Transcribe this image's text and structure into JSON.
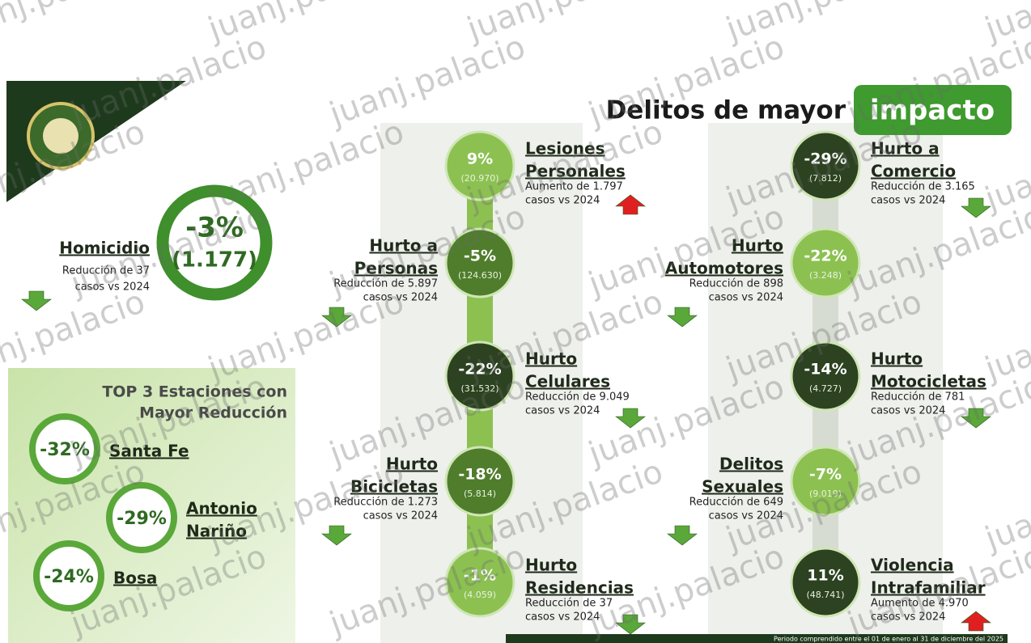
{
  "title": "Delitos de mayor",
  "title_highlight": "impacto",
  "watermark": "juanj.palacio",
  "homicidio": {
    "name": "Homicidio",
    "pct": "-3%",
    "count": "(1.177)",
    "desc": [
      "Reducción de 37",
      "casos vs 2024"
    ],
    "trend": "down"
  },
  "top3": {
    "title": [
      "TOP 3 Estaciones con",
      "Mayor Reducción"
    ],
    "items": [
      {
        "pct": "-32%",
        "name": [
          "Santa Fe"
        ]
      },
      {
        "pct": "-29%",
        "name": [
          "Antonio",
          "Nariño"
        ]
      },
      {
        "pct": "-24%",
        "name": [
          "Bosa"
        ]
      }
    ]
  },
  "columns": [
    [
      {
        "name": [
          "Lesiones",
          "Personales"
        ],
        "pct": "9%",
        "count": "(20.970)",
        "desc": [
          "Aumento de 1.797",
          "casos vs 2024"
        ],
        "trend": "up",
        "color": "#8cc152"
      },
      {
        "name": [
          "Hurto a",
          "Personas"
        ],
        "pct": "-5%",
        "count": "(124.630)",
        "desc": [
          "Reducción de 5.897",
          "casos vs 2024"
        ],
        "trend": "down",
        "color": "#4f7d2c"
      },
      {
        "name": [
          "Hurto",
          "Celulares"
        ],
        "pct": "-22%",
        "count": "(31.532)",
        "desc": [
          "Reducción de 9.049",
          "casos vs 2024"
        ],
        "trend": "down",
        "color": "#2c4220"
      },
      {
        "name": [
          "Hurto",
          "Bicicletas"
        ],
        "pct": "-18%",
        "count": "(5.814)",
        "desc": [
          "Reducción de 1.273",
          "casos vs 2024"
        ],
        "trend": "down",
        "color": "#4f7d2c"
      },
      {
        "name": [
          "Hurto",
          "Residencias"
        ],
        "pct": "-1%",
        "count": "(4.059)",
        "desc": [
          "Reducción de 37",
          "casos vs 2024"
        ],
        "trend": "down",
        "color": "#8cc152"
      }
    ],
    [
      {
        "name": [
          "Hurto a",
          "Comercio"
        ],
        "pct": "-29%",
        "count": "(7.812)",
        "desc": [
          "Reducción de 3.165",
          "casos vs 2024"
        ],
        "trend": "down",
        "color": "#2c4220"
      },
      {
        "name": [
          "Hurto",
          "Automotores"
        ],
        "pct": "-22%",
        "count": "(3.248)",
        "desc": [
          "Reducción de 898",
          "casos vs 2024"
        ],
        "trend": "down",
        "color": "#8cc152"
      },
      {
        "name": [
          "Hurto",
          "Motocicletas"
        ],
        "pct": "-14%",
        "count": "(4.727)",
        "desc": [
          "Reducción de 781",
          "casos vs 2024"
        ],
        "trend": "down",
        "color": "#2c4220"
      },
      {
        "name": [
          "Delitos",
          "Sexuales"
        ],
        "pct": "-7%",
        "count": "(9.019)",
        "desc": [
          "Reducción de 649",
          "casos vs 2024"
        ],
        "trend": "down",
        "color": "#8cc152"
      },
      {
        "name": [
          "Violencia",
          "Intrafamiliar"
        ],
        "pct": "11%",
        "count": "(48.741)",
        "desc": [
          "Aumento de 4.970",
          "casos vs 2024"
        ],
        "trend": "up",
        "color": "#2c4220"
      }
    ]
  ],
  "footer": "Periodo comprendido entre el 01 de enero al 31 de diciembre del 2025"
}
